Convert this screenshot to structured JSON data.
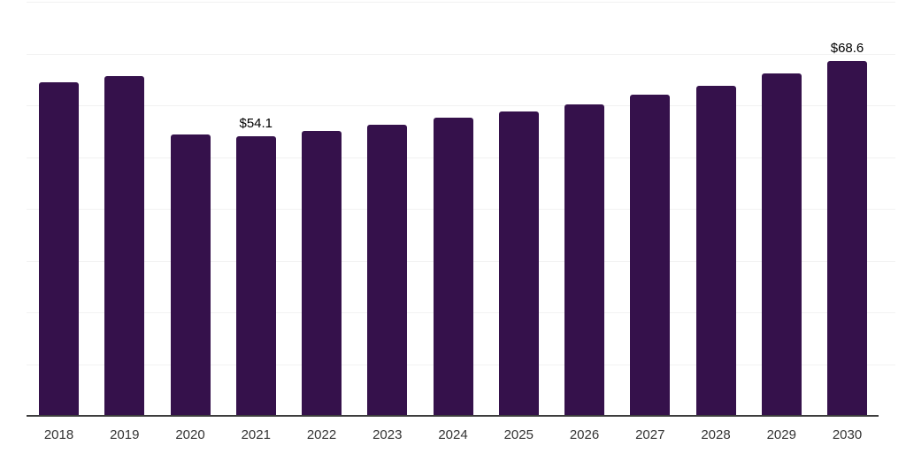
{
  "chart_data": {
    "type": "bar",
    "categories": [
      "2018",
      "2019",
      "2020",
      "2021",
      "2022",
      "2023",
      "2024",
      "2025",
      "2026",
      "2027",
      "2028",
      "2029",
      "2030"
    ],
    "values": [
      64.5,
      65.7,
      54.3,
      54.1,
      55.1,
      56.3,
      57.6,
      58.8,
      60.2,
      62.0,
      63.8,
      66.2,
      68.6
    ],
    "annotations": [
      {
        "category": "2021",
        "text": "$54.1"
      },
      {
        "category": "2030",
        "text": "$68.6"
      }
    ],
    "xlabel": "",
    "ylabel": "",
    "ylim": [
      0,
      80
    ],
    "gridline_step": 10,
    "grid": true,
    "legend": false,
    "colors": {
      "bar": "#35114B",
      "axis": "#3d3d3d",
      "gridline": "#f2f2f2",
      "tick_label": "#333333",
      "data_label": "#000000",
      "background": "#ffffff"
    }
  }
}
